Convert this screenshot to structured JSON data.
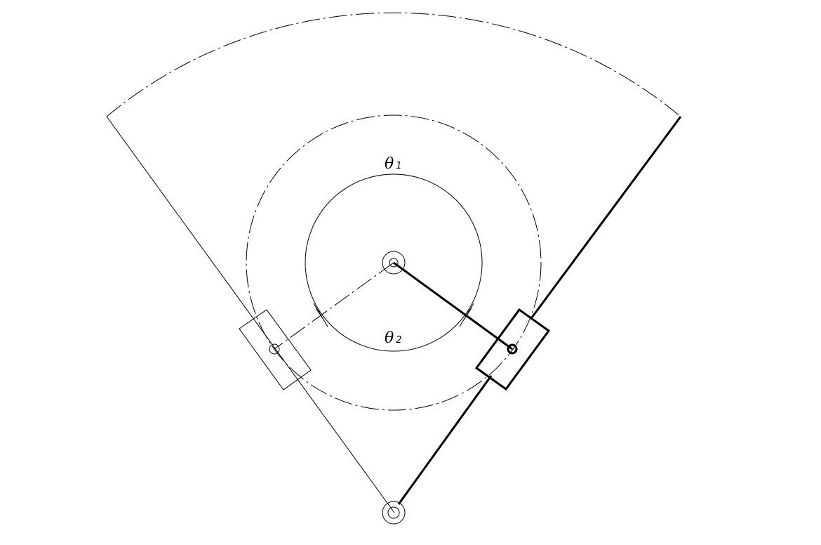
{
  "diagram": {
    "labels": {
      "theta1": {
        "symbol": "θ",
        "subscript": "1"
      },
      "theta2": {
        "symbol": "θ",
        "subscript": "2"
      }
    }
  }
}
